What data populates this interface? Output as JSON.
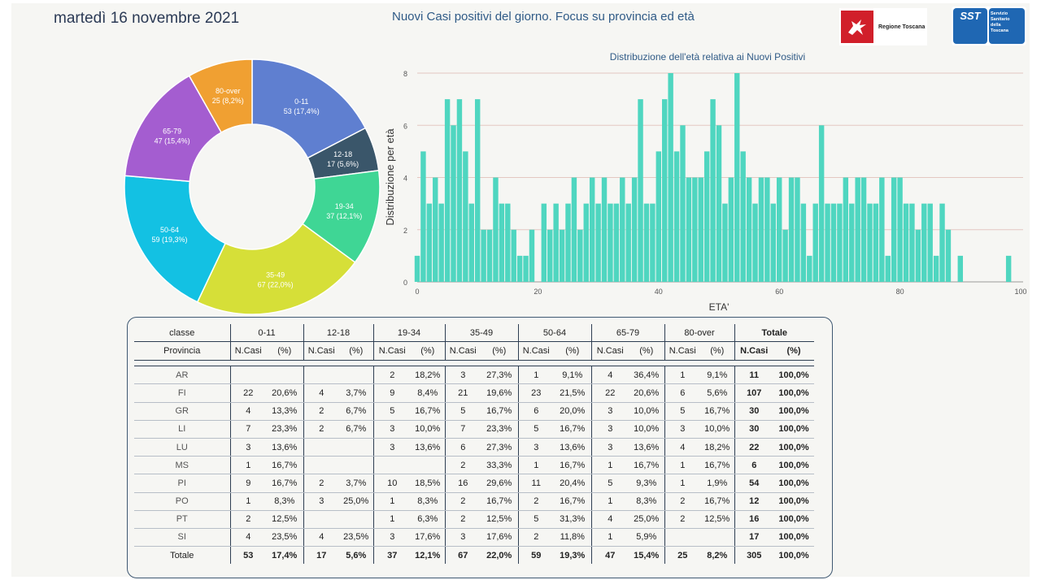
{
  "header": {
    "date": "martedì 16 novembre 2021",
    "title": "Nuovi Casi positivi del giorno. Focus su provincia ed età",
    "logo_rt_label": "Regione Toscana",
    "logo_sst_abbr": "SST",
    "logo_sst_lines": [
      "Servizio",
      "Sanitario",
      "della",
      "Toscana"
    ]
  },
  "chart_data": [
    {
      "type": "pie",
      "title": "",
      "donut": true,
      "slices": [
        {
          "label": "0-11",
          "value": 53,
          "pct": "17,4%",
          "color": "#5f7fd0"
        },
        {
          "label": "12-18",
          "value": 17,
          "pct": "5,6%",
          "color": "#3a566a"
        },
        {
          "label": "19-34",
          "value": 37,
          "pct": "12,1%",
          "color": "#3fd695"
        },
        {
          "label": "35-49",
          "value": 67,
          "pct": "22,0%",
          "color": "#d6df38"
        },
        {
          "label": "50-64",
          "value": 59,
          "pct": "19,3%",
          "color": "#13c1e3"
        },
        {
          "label": "65-79",
          "value": 47,
          "pct": "15,4%",
          "color": "#a45dd0"
        },
        {
          "label": "80-over",
          "value": 25,
          "pct": "8,2%",
          "color": "#f0a032"
        }
      ]
    },
    {
      "type": "bar",
      "title": "Distribuzione dell'età relativa ai Nuovi Positivi",
      "xlabel": "ETA'",
      "ylabel": "Distribuzione per età",
      "xlim": [
        0,
        100
      ],
      "ylim": [
        0,
        8
      ],
      "xticks": [
        0,
        20,
        40,
        60,
        80,
        100
      ],
      "yticks": [
        0,
        2,
        4,
        6,
        8
      ],
      "grid": true,
      "color": "#4fd6c0",
      "x": [
        0,
        1,
        2,
        3,
        4,
        5,
        6,
        7,
        8,
        9,
        10,
        11,
        12,
        13,
        14,
        15,
        16,
        17,
        18,
        19,
        20,
        21,
        22,
        23,
        24,
        25,
        26,
        27,
        28,
        29,
        30,
        31,
        32,
        33,
        34,
        35,
        36,
        37,
        38,
        39,
        40,
        41,
        42,
        43,
        44,
        45,
        46,
        47,
        48,
        49,
        50,
        51,
        52,
        53,
        54,
        55,
        56,
        57,
        58,
        59,
        60,
        61,
        62,
        63,
        64,
        65,
        66,
        67,
        68,
        69,
        70,
        71,
        72,
        73,
        74,
        75,
        76,
        77,
        78,
        79,
        80,
        81,
        82,
        83,
        84,
        85,
        86,
        87,
        88,
        89,
        90,
        91,
        92,
        93,
        94,
        95,
        96,
        97,
        98,
        99
      ],
      "values": [
        1,
        5,
        3,
        4,
        3,
        7,
        6,
        7,
        5,
        3,
        7,
        2,
        2,
        4,
        3,
        3,
        2,
        1,
        1,
        2,
        0,
        3,
        2,
        3,
        2,
        3,
        4,
        2,
        3,
        4,
        3,
        4,
        3,
        3,
        4,
        3,
        4,
        7,
        3,
        3,
        5,
        7,
        8,
        5,
        6,
        4,
        4,
        4,
        5,
        7,
        6,
        3,
        4,
        8,
        5,
        4,
        3,
        4,
        4,
        3,
        4,
        2,
        4,
        4,
        3,
        1,
        3,
        6,
        3,
        3,
        3,
        4,
        3,
        4,
        4,
        3,
        3,
        4,
        1,
        4,
        4,
        3,
        3,
        2,
        3,
        3,
        1,
        3,
        2,
        0,
        1,
        0,
        0,
        0,
        0,
        0,
        0,
        0,
        1,
        0
      ]
    }
  ],
  "table": {
    "corner_top": "classe",
    "corner_sub": "Provincia",
    "groups": [
      "0-11",
      "12-18",
      "19-34",
      "35-49",
      "50-64",
      "65-79",
      "80-over",
      "Totale"
    ],
    "sub": [
      "N.Casi",
      "(%)"
    ],
    "rows": [
      {
        "prov": "AR",
        "cells": [
          "",
          "",
          "",
          "",
          "2",
          "18,2%",
          "3",
          "27,3%",
          "1",
          "9,1%",
          "4",
          "36,4%",
          "1",
          "9,1%",
          "11",
          "100,0%"
        ]
      },
      {
        "prov": "FI",
        "cells": [
          "22",
          "20,6%",
          "4",
          "3,7%",
          "9",
          "8,4%",
          "21",
          "19,6%",
          "23",
          "21,5%",
          "22",
          "20,6%",
          "6",
          "5,6%",
          "107",
          "100,0%"
        ]
      },
      {
        "prov": "GR",
        "cells": [
          "4",
          "13,3%",
          "2",
          "6,7%",
          "5",
          "16,7%",
          "5",
          "16,7%",
          "6",
          "20,0%",
          "3",
          "10,0%",
          "5",
          "16,7%",
          "30",
          "100,0%"
        ]
      },
      {
        "prov": "LI",
        "cells": [
          "7",
          "23,3%",
          "2",
          "6,7%",
          "3",
          "10,0%",
          "7",
          "23,3%",
          "5",
          "16,7%",
          "3",
          "10,0%",
          "3",
          "10,0%",
          "30",
          "100,0%"
        ]
      },
      {
        "prov": "LU",
        "cells": [
          "3",
          "13,6%",
          "",
          "",
          "3",
          "13,6%",
          "6",
          "27,3%",
          "3",
          "13,6%",
          "3",
          "13,6%",
          "4",
          "18,2%",
          "22",
          "100,0%"
        ]
      },
      {
        "prov": "MS",
        "cells": [
          "1",
          "16,7%",
          "",
          "",
          "",
          "",
          "2",
          "33,3%",
          "1",
          "16,7%",
          "1",
          "16,7%",
          "1",
          "16,7%",
          "6",
          "100,0%"
        ]
      },
      {
        "prov": "PI",
        "cells": [
          "9",
          "16,7%",
          "2",
          "3,7%",
          "10",
          "18,5%",
          "16",
          "29,6%",
          "11",
          "20,4%",
          "5",
          "9,3%",
          "1",
          "1,9%",
          "54",
          "100,0%"
        ]
      },
      {
        "prov": "PO",
        "cells": [
          "1",
          "8,3%",
          "3",
          "25,0%",
          "1",
          "8,3%",
          "2",
          "16,7%",
          "2",
          "16,7%",
          "1",
          "8,3%",
          "2",
          "16,7%",
          "12",
          "100,0%"
        ]
      },
      {
        "prov": "PT",
        "cells": [
          "2",
          "12,5%",
          "",
          "",
          "1",
          "6,3%",
          "2",
          "12,5%",
          "5",
          "31,3%",
          "4",
          "25,0%",
          "2",
          "12,5%",
          "16",
          "100,0%"
        ]
      },
      {
        "prov": "SI",
        "cells": [
          "4",
          "23,5%",
          "4",
          "23,5%",
          "3",
          "17,6%",
          "3",
          "17,6%",
          "2",
          "11,8%",
          "1",
          "5,9%",
          "",
          "",
          "17",
          "100,0%"
        ]
      }
    ],
    "total": {
      "prov": "Totale",
      "cells": [
        "53",
        "17,4%",
        "17",
        "5,6%",
        "37",
        "12,1%",
        "67",
        "22,0%",
        "59",
        "19,3%",
        "47",
        "15,4%",
        "25",
        "8,2%",
        "305",
        "100,0%"
      ]
    }
  }
}
